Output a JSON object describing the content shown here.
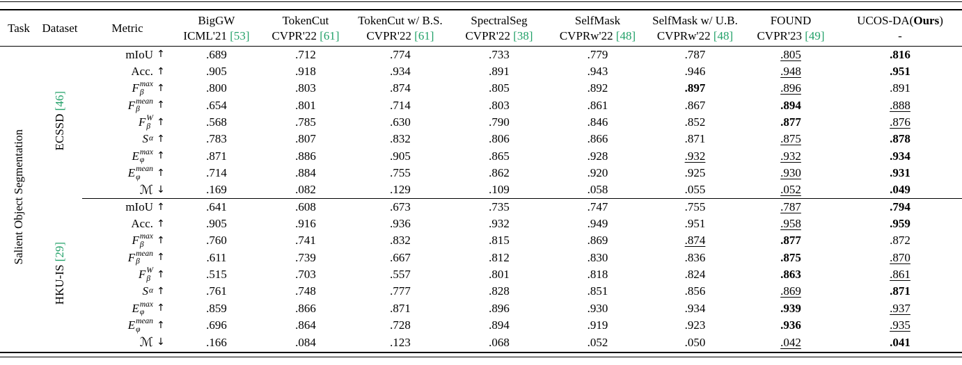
{
  "colors": {
    "citation_green": "#23a169",
    "text": "#000000",
    "background": "#ffffff"
  },
  "table": {
    "id_headers": {
      "task": "Task",
      "dataset": "Dataset",
      "metric": "Metric"
    },
    "task_label": "Salient Object Segmentation",
    "methods": [
      {
        "name": "BigGW",
        "venue": "ICML'21",
        "cite": "[53]"
      },
      {
        "name": "TokenCut",
        "venue": "CVPR'22",
        "cite": "[61]"
      },
      {
        "name": "TokenCut w/ B.S.",
        "venue": "CVPR'22",
        "cite": "[61]"
      },
      {
        "name": "SpectralSeg",
        "venue": "CVPR'22",
        "cite": "[38]"
      },
      {
        "name": "SelfMask",
        "venue": "CVPRw'22",
        "cite": "[48]"
      },
      {
        "name": "SelfMask w/ U.B.",
        "venue": "CVPRw'22",
        "cite": "[48]"
      },
      {
        "name": "FOUND",
        "venue": "CVPR'23",
        "cite": "[49]"
      },
      {
        "name": "UCOS-DA(",
        "bold": "Ours",
        "post": ")",
        "venue": "-",
        "cite": ""
      }
    ],
    "format_legend": {
      "b": "bold (best)",
      "u": "underline (second best)",
      "": "plain"
    },
    "groups": [
      {
        "dataset": "ECSSD",
        "cite": "[46]",
        "rows": [
          {
            "m": {
              "base": "mIoU",
              "i": 0,
              "arrow": "↑"
            },
            "v": [
              [
                ".689",
                ""
              ],
              [
                ".712",
                ""
              ],
              [
                ".774",
                ""
              ],
              [
                ".733",
                ""
              ],
              [
                ".779",
                ""
              ],
              [
                ".787",
                ""
              ],
              [
                ".805",
                "u"
              ],
              [
                ".816",
                "b"
              ]
            ]
          },
          {
            "m": {
              "base": "Acc.",
              "i": 0,
              "arrow": "↑"
            },
            "v": [
              [
                ".905",
                ""
              ],
              [
                ".918",
                ""
              ],
              [
                ".934",
                ""
              ],
              [
                ".891",
                ""
              ],
              [
                ".943",
                ""
              ],
              [
                ".946",
                ""
              ],
              [
                ".948",
                "u"
              ],
              [
                ".951",
                "b"
              ]
            ]
          },
          {
            "m": {
              "base": "F",
              "i": 1,
              "sub": "β",
              "sup": "max",
              "arrow": "↑"
            },
            "v": [
              [
                ".800",
                ""
              ],
              [
                ".803",
                ""
              ],
              [
                ".874",
                ""
              ],
              [
                ".805",
                ""
              ],
              [
                ".892",
                ""
              ],
              [
                ".897",
                "b"
              ],
              [
                ".896",
                "u"
              ],
              [
                ".891",
                ""
              ]
            ]
          },
          {
            "m": {
              "base": "F",
              "i": 1,
              "sub": "β",
              "sup": "mean",
              "arrow": "↑"
            },
            "v": [
              [
                ".654",
                ""
              ],
              [
                ".801",
                ""
              ],
              [
                ".714",
                ""
              ],
              [
                ".803",
                ""
              ],
              [
                ".861",
                ""
              ],
              [
                ".867",
                ""
              ],
              [
                ".894",
                "b"
              ],
              [
                ".888",
                "u"
              ]
            ]
          },
          {
            "m": {
              "base": "F",
              "i": 1,
              "sub": "β",
              "sup": "W",
              "arrow": "↑"
            },
            "v": [
              [
                ".568",
                ""
              ],
              [
                ".785",
                ""
              ],
              [
                ".630",
                ""
              ],
              [
                ".790",
                ""
              ],
              [
                ".846",
                ""
              ],
              [
                ".852",
                ""
              ],
              [
                ".877",
                "b"
              ],
              [
                ".876",
                "u"
              ]
            ]
          },
          {
            "m": {
              "base": "S",
              "i": 1,
              "sub": "α",
              "arrow": "↑"
            },
            "v": [
              [
                ".783",
                ""
              ],
              [
                ".807",
                ""
              ],
              [
                ".832",
                ""
              ],
              [
                ".806",
                ""
              ],
              [
                ".866",
                ""
              ],
              [
                ".871",
                ""
              ],
              [
                ".875",
                "u"
              ],
              [
                ".878",
                "b"
              ]
            ]
          },
          {
            "m": {
              "base": "E",
              "i": 1,
              "sub": "φ",
              "sup": "max",
              "arrow": "↑"
            },
            "v": [
              [
                ".871",
                ""
              ],
              [
                ".886",
                ""
              ],
              [
                ".905",
                ""
              ],
              [
                ".865",
                ""
              ],
              [
                ".928",
                ""
              ],
              [
                ".932",
                "u"
              ],
              [
                ".932",
                "u"
              ],
              [
                ".934",
                "b"
              ]
            ]
          },
          {
            "m": {
              "base": "E",
              "i": 1,
              "sub": "φ",
              "sup": "mean",
              "arrow": "↑"
            },
            "v": [
              [
                ".714",
                ""
              ],
              [
                ".884",
                ""
              ],
              [
                ".755",
                ""
              ],
              [
                ".862",
                ""
              ],
              [
                ".920",
                ""
              ],
              [
                ".925",
                ""
              ],
              [
                ".930",
                "u"
              ],
              [
                ".931",
                "b"
              ]
            ]
          },
          {
            "m": {
              "base": "ℳ",
              "i": 0,
              "s": 1,
              "arrow": "↓"
            },
            "v": [
              [
                ".169",
                ""
              ],
              [
                ".082",
                ""
              ],
              [
                ".129",
                ""
              ],
              [
                ".109",
                ""
              ],
              [
                ".058",
                ""
              ],
              [
                ".055",
                ""
              ],
              [
                ".052",
                "u"
              ],
              [
                ".049",
                "b"
              ]
            ]
          }
        ]
      },
      {
        "dataset": "HKU-IS",
        "cite": "[29]",
        "rows": [
          {
            "m": {
              "base": "mIoU",
              "i": 0,
              "arrow": "↑"
            },
            "v": [
              [
                ".641",
                ""
              ],
              [
                ".608",
                ""
              ],
              [
                ".673",
                ""
              ],
              [
                ".735",
                ""
              ],
              [
                ".747",
                ""
              ],
              [
                ".755",
                ""
              ],
              [
                ".787",
                "u"
              ],
              [
                ".794",
                "b"
              ]
            ]
          },
          {
            "m": {
              "base": "Acc.",
              "i": 0,
              "arrow": "↑"
            },
            "v": [
              [
                ".905",
                ""
              ],
              [
                ".916",
                ""
              ],
              [
                ".936",
                ""
              ],
              [
                ".932",
                ""
              ],
              [
                ".949",
                ""
              ],
              [
                ".951",
                ""
              ],
              [
                ".958",
                "u"
              ],
              [
                ".959",
                "b"
              ]
            ]
          },
          {
            "m": {
              "base": "F",
              "i": 1,
              "sub": "β",
              "sup": "max",
              "arrow": "↑"
            },
            "v": [
              [
                ".760",
                ""
              ],
              [
                ".741",
                ""
              ],
              [
                ".832",
                ""
              ],
              [
                ".815",
                ""
              ],
              [
                ".869",
                ""
              ],
              [
                ".874",
                "u"
              ],
              [
                ".877",
                "b"
              ],
              [
                ".872",
                ""
              ]
            ]
          },
          {
            "m": {
              "base": "F",
              "i": 1,
              "sub": "β",
              "sup": "mean",
              "arrow": "↑"
            },
            "v": [
              [
                ".611",
                ""
              ],
              [
                ".739",
                ""
              ],
              [
                ".667",
                ""
              ],
              [
                ".812",
                ""
              ],
              [
                ".830",
                ""
              ],
              [
                ".836",
                ""
              ],
              [
                ".875",
                "b"
              ],
              [
                ".870",
                "u"
              ]
            ]
          },
          {
            "m": {
              "base": "F",
              "i": 1,
              "sub": "β",
              "sup": "W",
              "arrow": "↑"
            },
            "v": [
              [
                ".515",
                ""
              ],
              [
                ".703",
                ""
              ],
              [
                ".557",
                ""
              ],
              [
                ".801",
                ""
              ],
              [
                ".818",
                ""
              ],
              [
                ".824",
                ""
              ],
              [
                ".863",
                "b"
              ],
              [
                ".861",
                "u"
              ]
            ]
          },
          {
            "m": {
              "base": "S",
              "i": 1,
              "sub": "α",
              "arrow": "↑"
            },
            "v": [
              [
                ".761",
                ""
              ],
              [
                ".748",
                ""
              ],
              [
                ".777",
                ""
              ],
              [
                ".828",
                ""
              ],
              [
                ".851",
                ""
              ],
              [
                ".856",
                ""
              ],
              [
                ".869",
                "u"
              ],
              [
                ".871",
                "b"
              ]
            ]
          },
          {
            "m": {
              "base": "E",
              "i": 1,
              "sub": "φ",
              "sup": "max",
              "arrow": "↑"
            },
            "v": [
              [
                ".859",
                ""
              ],
              [
                ".866",
                ""
              ],
              [
                ".871",
                ""
              ],
              [
                ".896",
                ""
              ],
              [
                ".930",
                ""
              ],
              [
                ".934",
                ""
              ],
              [
                ".939",
                "b"
              ],
              [
                ".937",
                "u"
              ]
            ]
          },
          {
            "m": {
              "base": "E",
              "i": 1,
              "sub": "φ",
              "sup": "mean",
              "arrow": "↑"
            },
            "v": [
              [
                ".696",
                ""
              ],
              [
                ".864",
                ""
              ],
              [
                ".728",
                ""
              ],
              [
                ".894",
                ""
              ],
              [
                ".919",
                ""
              ],
              [
                ".923",
                ""
              ],
              [
                ".936",
                "b"
              ],
              [
                ".935",
                "u"
              ]
            ]
          },
          {
            "m": {
              "base": "ℳ",
              "i": 0,
              "s": 1,
              "arrow": "↓"
            },
            "v": [
              [
                ".166",
                ""
              ],
              [
                ".084",
                ""
              ],
              [
                ".123",
                ""
              ],
              [
                ".068",
                ""
              ],
              [
                ".052",
                ""
              ],
              [
                ".050",
                ""
              ],
              [
                ".042",
                "u"
              ],
              [
                ".041",
                "b"
              ]
            ]
          }
        ]
      }
    ]
  }
}
